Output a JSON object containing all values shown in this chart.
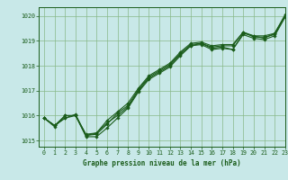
{
  "title": "Graphe pression niveau de la mer (hPa)",
  "background_color": "#c8e8e8",
  "grid_color": "#88b888",
  "line_color": "#1a5c1a",
  "xlim": [
    -0.5,
    23
  ],
  "ylim": [
    1014.75,
    1020.35
  ],
  "yticks": [
    1015,
    1016,
    1017,
    1018,
    1019,
    1020
  ],
  "xticks": [
    0,
    1,
    2,
    3,
    4,
    5,
    6,
    7,
    8,
    9,
    10,
    11,
    12,
    13,
    14,
    15,
    16,
    17,
    18,
    19,
    20,
    21,
    22,
    23
  ],
  "series": [
    [
      1015.9,
      1015.55,
      1016.0,
      1016.0,
      1015.15,
      1015.15,
      1015.5,
      1015.9,
      1016.3,
      1016.95,
      1017.45,
      1017.7,
      1017.95,
      1018.4,
      1018.8,
      1018.85,
      1018.65,
      1018.7,
      1018.65,
      1019.25,
      1019.1,
      1019.05,
      1019.2,
      1019.95
    ],
    [
      1015.9,
      1015.6,
      1015.9,
      1016.0,
      1015.2,
      1015.3,
      1015.7,
      1016.0,
      1016.35,
      1017.0,
      1017.5,
      1017.75,
      1018.0,
      1018.45,
      1018.8,
      1018.9,
      1018.7,
      1018.75,
      1018.65,
      1019.3,
      1019.2,
      1019.1,
      1019.3,
      1020.0
    ],
    [
      1015.9,
      1015.6,
      1015.9,
      1016.05,
      1015.2,
      1015.25,
      1015.65,
      1016.1,
      1016.4,
      1017.05,
      1017.55,
      1017.8,
      1018.05,
      1018.5,
      1018.85,
      1018.9,
      1018.75,
      1018.8,
      1018.8,
      1019.35,
      1019.15,
      1019.15,
      1019.25,
      1020.0
    ],
    [
      1015.9,
      1015.6,
      1016.0,
      1016.0,
      1015.25,
      1015.3,
      1015.8,
      1016.15,
      1016.5,
      1017.1,
      1017.6,
      1017.85,
      1018.1,
      1018.55,
      1018.9,
      1018.95,
      1018.8,
      1018.85,
      1018.85,
      1019.35,
      1019.2,
      1019.2,
      1019.3,
      1020.05
    ]
  ]
}
